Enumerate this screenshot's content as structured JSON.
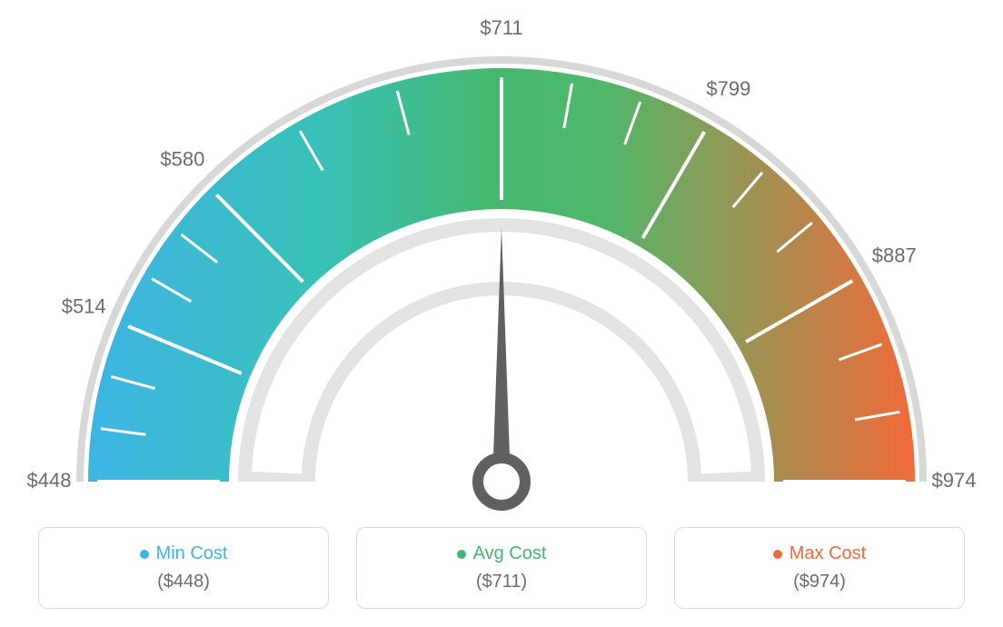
{
  "gauge": {
    "type": "gauge",
    "min_value": 448,
    "max_value": 974,
    "avg_value": 711,
    "needle_value": 711,
    "start_angle_deg": -180,
    "end_angle_deg": 0,
    "tick_labels": [
      "$448",
      "$514",
      "$580",
      "$711",
      "$799",
      "$887",
      "$974"
    ],
    "tick_values": [
      448,
      514,
      580,
      711,
      799,
      887,
      974
    ],
    "gradient_colors": {
      "start": "#3eb4e4",
      "mid1": "#38c1b8",
      "mid2": "#44b871",
      "mid3": "#4fb86a",
      "end": "#f26a3a"
    },
    "outer_arc_color": "#d8d8d8",
    "inner_arc_color": "#e3e3e3",
    "tick_color": "#ffffff",
    "needle_color": "#606060",
    "background_color": "#ffffff",
    "label_color": "#6b6b6b",
    "label_fontsize": 22
  },
  "legend": {
    "cards": [
      {
        "label": "Min Cost",
        "value": "($448)",
        "color": "#3eb4e4"
      },
      {
        "label": "Avg Cost",
        "value": "($711)",
        "color": "#44b871"
      },
      {
        "label": "Max Cost",
        "value": "($974)",
        "color": "#f26a3a"
      }
    ],
    "border_color": "#dcdcdc",
    "value_color": "#6b6b6b"
  }
}
